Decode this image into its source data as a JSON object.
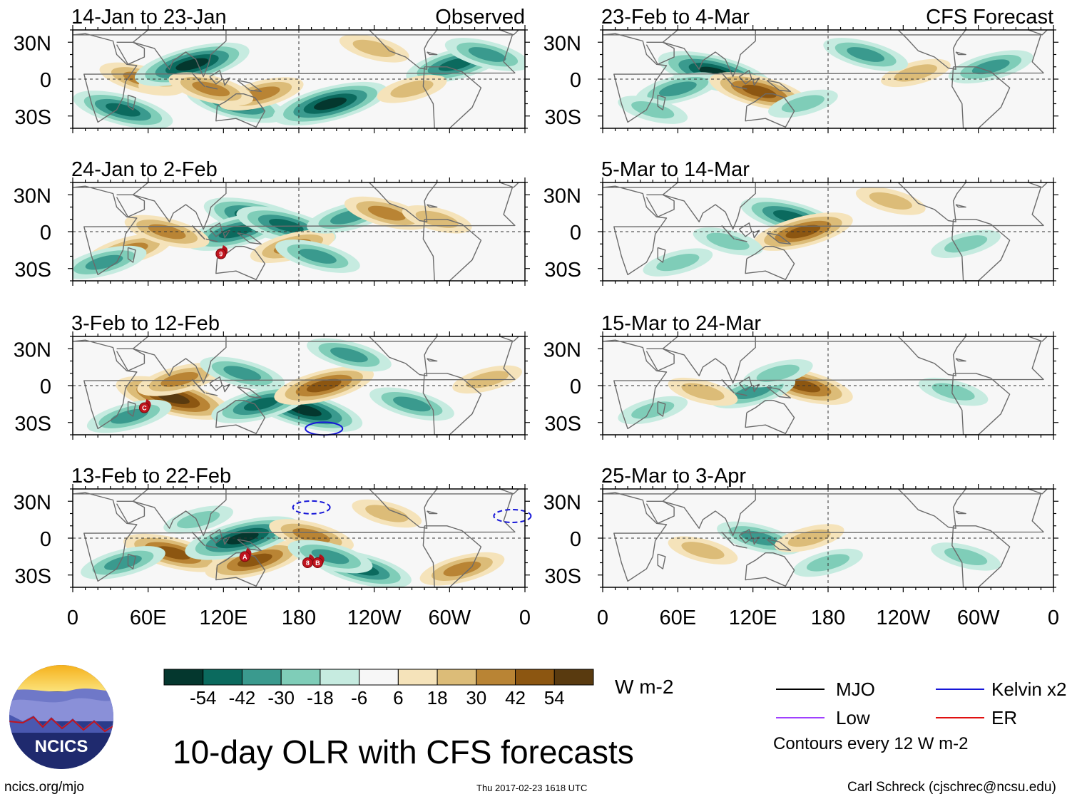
{
  "title": "10-day OLR with CFS forecasts",
  "site": "ncics.org/mjo",
  "timestamp": "Thu 2017-02-23 1618 UTC",
  "credit": "Carl Schreck (cjschrec@ncsu.edu)",
  "logo_text": "NCICS",
  "panel_labels": {
    "observed": "Observed",
    "forecast": "CFS Forecast"
  },
  "chart_data": [
    {
      "type": "heatmap",
      "group": "Observed",
      "title": "14-Jan to 23-Jan",
      "variable": "OLR anomaly",
      "units": "W m-2",
      "xlabel": "",
      "ylabel": "",
      "xlim": [
        0,
        360
      ],
      "ylim": [
        -40,
        40
      ],
      "x_ticks": [
        "0",
        "60E",
        "120E",
        "180",
        "120W",
        "60W",
        "0"
      ],
      "y_ticks": [
        "30N",
        "0",
        "30S"
      ],
      "anomalies": [
        {
          "lon": 55,
          "lat": 0,
          "value": 30
        },
        {
          "lon": 85,
          "lat": 2,
          "value": 28
        },
        {
          "lon": 40,
          "lat": -25,
          "value": -42
        },
        {
          "lon": 95,
          "lat": 12,
          "value": -54
        },
        {
          "lon": 130,
          "lat": -20,
          "value": -42
        },
        {
          "lon": 150,
          "lat": -12,
          "value": 30
        },
        {
          "lon": 110,
          "lat": -8,
          "value": 30
        },
        {
          "lon": 205,
          "lat": -20,
          "value": -54
        },
        {
          "lon": 240,
          "lat": 25,
          "value": 18
        },
        {
          "lon": 305,
          "lat": 12,
          "value": -42
        },
        {
          "lon": 330,
          "lat": 20,
          "value": -30
        },
        {
          "lon": 270,
          "lat": -8,
          "value": 18
        }
      ]
    },
    {
      "type": "heatmap",
      "group": "Observed",
      "title": "24-Jan to 2-Feb",
      "variable": "OLR anomaly",
      "units": "W m-2",
      "xlabel": "",
      "ylabel": "",
      "xlim": [
        0,
        360
      ],
      "ylim": [
        -40,
        40
      ],
      "x_ticks": [
        "0",
        "60E",
        "120E",
        "180",
        "120W",
        "60W",
        "0"
      ],
      "y_ticks": [
        "30N",
        "0",
        "30S"
      ],
      "anomalies": [
        {
          "lon": 150,
          "lat": 10,
          "value": -54
        },
        {
          "lon": 130,
          "lat": 0,
          "value": -42
        },
        {
          "lon": 170,
          "lat": 5,
          "value": -42
        },
        {
          "lon": 45,
          "lat": -15,
          "value": 30
        },
        {
          "lon": 75,
          "lat": 0,
          "value": 30
        },
        {
          "lon": 175,
          "lat": -12,
          "value": 30
        },
        {
          "lon": 195,
          "lat": -20,
          "value": -30
        },
        {
          "lon": 220,
          "lat": 12,
          "value": -30
        },
        {
          "lon": 250,
          "lat": 15,
          "value": 30
        },
        {
          "lon": 25,
          "lat": -25,
          "value": -30
        },
        {
          "lon": 290,
          "lat": 10,
          "value": 18
        }
      ],
      "storms": [
        {
          "label": "9",
          "lon": 118,
          "lat": -18
        }
      ]
    },
    {
      "type": "heatmap",
      "group": "Observed",
      "title": "3-Feb to 12-Feb",
      "variable": "OLR anomaly",
      "units": "W m-2",
      "xlabel": "",
      "ylabel": "",
      "xlim": [
        0,
        360
      ],
      "ylim": [
        -40,
        40
      ],
      "x_ticks": [
        "0",
        "60E",
        "120E",
        "180",
        "120W",
        "60W",
        "0"
      ],
      "y_ticks": [
        "30N",
        "0",
        "30S"
      ],
      "anomalies": [
        {
          "lon": 80,
          "lat": -10,
          "value": 54
        },
        {
          "lon": 85,
          "lat": 5,
          "value": 30
        },
        {
          "lon": 185,
          "lat": -20,
          "value": -54
        },
        {
          "lon": 150,
          "lat": -15,
          "value": -42
        },
        {
          "lon": 135,
          "lat": 10,
          "value": -30
        },
        {
          "lon": 200,
          "lat": 0,
          "value": 42
        },
        {
          "lon": 270,
          "lat": -15,
          "value": -30
        },
        {
          "lon": 45,
          "lat": -25,
          "value": -30
        },
        {
          "lon": 220,
          "lat": 25,
          "value": -30
        },
        {
          "lon": 330,
          "lat": 5,
          "value": 18
        }
      ],
      "storms": [
        {
          "label": "C",
          "lon": 57,
          "lat": -18
        }
      ],
      "contours": [
        {
          "wave": "Kelvin x2",
          "lon": 200,
          "lat": -35
        }
      ]
    },
    {
      "type": "heatmap",
      "group": "Observed",
      "title": "13-Feb to 22-Feb",
      "variable": "OLR anomaly",
      "units": "W m-2",
      "xlabel": "",
      "ylabel": "",
      "xlim": [
        0,
        360
      ],
      "ylim": [
        -40,
        40
      ],
      "x_ticks": [
        "0",
        "60E",
        "120E",
        "180",
        "120W",
        "60W",
        "0"
      ],
      "y_ticks": [
        "30N",
        "0",
        "30S"
      ],
      "anomalies": [
        {
          "lon": 80,
          "lat": -12,
          "value": 42
        },
        {
          "lon": 145,
          "lat": -18,
          "value": 42
        },
        {
          "lon": 230,
          "lat": -25,
          "value": -42
        },
        {
          "lon": 135,
          "lat": 0,
          "value": -54
        },
        {
          "lon": 190,
          "lat": 2,
          "value": 30
        },
        {
          "lon": 40,
          "lat": -20,
          "value": -30
        },
        {
          "lon": 205,
          "lat": -15,
          "value": -30
        },
        {
          "lon": 310,
          "lat": -25,
          "value": 30
        },
        {
          "lon": 250,
          "lat": 20,
          "value": 18
        },
        {
          "lon": 100,
          "lat": 15,
          "value": -18
        }
      ],
      "storms": [
        {
          "label": "A",
          "lon": 137,
          "lat": -15
        },
        {
          "label": "8",
          "lon": 187,
          "lat": -20
        },
        {
          "label": "B",
          "lon": 195,
          "lat": -20
        }
      ],
      "contours": [
        {
          "wave": "Kelvin x2",
          "lon": 190,
          "lat": 25
        },
        {
          "wave": "Kelvin x2",
          "lon": 350,
          "lat": 18
        }
      ]
    },
    {
      "type": "heatmap",
      "group": "CFS Forecast",
      "title": "23-Feb to 4-Mar",
      "variable": "OLR anomaly",
      "units": "W m-2",
      "xlabel": "",
      "ylabel": "",
      "xlim": [
        0,
        360
      ],
      "ylim": [
        -40,
        40
      ],
      "x_ticks": [
        "0",
        "60E",
        "120E",
        "180",
        "120W",
        "60W",
        "0"
      ],
      "y_ticks": [
        "30N",
        "0",
        "30S"
      ],
      "anomalies": [
        {
          "lon": 90,
          "lat": 5,
          "value": -54
        },
        {
          "lon": 60,
          "lat": -8,
          "value": -30
        },
        {
          "lon": 125,
          "lat": -10,
          "value": 42
        },
        {
          "lon": 250,
          "lat": 5,
          "value": 18
        },
        {
          "lon": 210,
          "lat": 20,
          "value": -30
        },
        {
          "lon": 310,
          "lat": 10,
          "value": -30
        },
        {
          "lon": 40,
          "lat": -25,
          "value": -18
        },
        {
          "lon": 160,
          "lat": -20,
          "value": -18
        }
      ]
    },
    {
      "type": "heatmap",
      "group": "CFS Forecast",
      "title": "5-Mar to 14-Mar",
      "variable": "OLR anomaly",
      "units": "W m-2",
      "xlabel": "",
      "ylabel": "",
      "xlim": [
        0,
        360
      ],
      "ylim": [
        -40,
        40
      ],
      "x_ticks": [
        "0",
        "60E",
        "120E",
        "180",
        "120W",
        "60W",
        "0"
      ],
      "y_ticks": [
        "30N",
        "0",
        "30S"
      ],
      "anomalies": [
        {
          "lon": 150,
          "lat": 12,
          "value": -42
        },
        {
          "lon": 160,
          "lat": 0,
          "value": 42
        },
        {
          "lon": 100,
          "lat": -8,
          "value": -18
        },
        {
          "lon": 290,
          "lat": -10,
          "value": -18
        },
        {
          "lon": 230,
          "lat": 25,
          "value": 18
        },
        {
          "lon": 60,
          "lat": -25,
          "value": -18
        }
      ]
    },
    {
      "type": "heatmap",
      "group": "CFS Forecast",
      "title": "15-Mar to 24-Mar",
      "variable": "OLR anomaly",
      "units": "W m-2",
      "xlabel": "",
      "ylabel": "",
      "xlim": [
        0,
        360
      ],
      "ylim": [
        -40,
        40
      ],
      "x_ticks": [
        "0",
        "60E",
        "120E",
        "180",
        "120W",
        "60W",
        "0"
      ],
      "y_ticks": [
        "30N",
        "0",
        "30S"
      ],
      "anomalies": [
        {
          "lon": 160,
          "lat": 0,
          "value": 42
        },
        {
          "lon": 120,
          "lat": -5,
          "value": -30
        },
        {
          "lon": 80,
          "lat": -5,
          "value": 18
        },
        {
          "lon": 140,
          "lat": 10,
          "value": -18
        },
        {
          "lon": 280,
          "lat": -5,
          "value": -18
        },
        {
          "lon": 40,
          "lat": -20,
          "value": -18
        }
      ]
    },
    {
      "type": "heatmap",
      "group": "CFS Forecast",
      "title": "25-Mar to 3-Apr",
      "variable": "OLR anomaly",
      "units": "W m-2",
      "xlabel": "",
      "ylabel": "",
      "xlim": [
        0,
        360
      ],
      "ylim": [
        -40,
        40
      ],
      "x_ticks": [
        "0",
        "60E",
        "120E",
        "180",
        "120W",
        "60W",
        "0"
      ],
      "y_ticks": [
        "30N",
        "0",
        "30S"
      ],
      "anomalies": [
        {
          "lon": 125,
          "lat": 0,
          "value": -30
        },
        {
          "lon": 165,
          "lat": 0,
          "value": 18
        },
        {
          "lon": 80,
          "lat": -10,
          "value": 18
        },
        {
          "lon": 180,
          "lat": -20,
          "value": -18
        },
        {
          "lon": 290,
          "lat": -15,
          "value": -18
        }
      ]
    }
  ],
  "colorbar": {
    "units": "W m-2",
    "tick_labels": [
      "-54",
      "-42",
      "-30",
      "-18",
      "-6",
      "6",
      "18",
      "30",
      "42",
      "54"
    ],
    "colors": [
      "#04372e",
      "#0b6a5e",
      "#3a9a8e",
      "#7fcdb8",
      "#c6ebe0",
      "#f7f7f7",
      "#f5e3ba",
      "#dcbc78",
      "#b98434",
      "#8c5611",
      "#593a0f"
    ]
  },
  "legend": {
    "items": [
      {
        "label": "MJO",
        "color": "#000000"
      },
      {
        "label": "Kelvin x2",
        "color": "#1616d8"
      },
      {
        "label": "Low",
        "color": "#a040ff"
      },
      {
        "label": "ER",
        "color": "#e01010"
      }
    ],
    "note": "Contours every 12 W m-2"
  }
}
